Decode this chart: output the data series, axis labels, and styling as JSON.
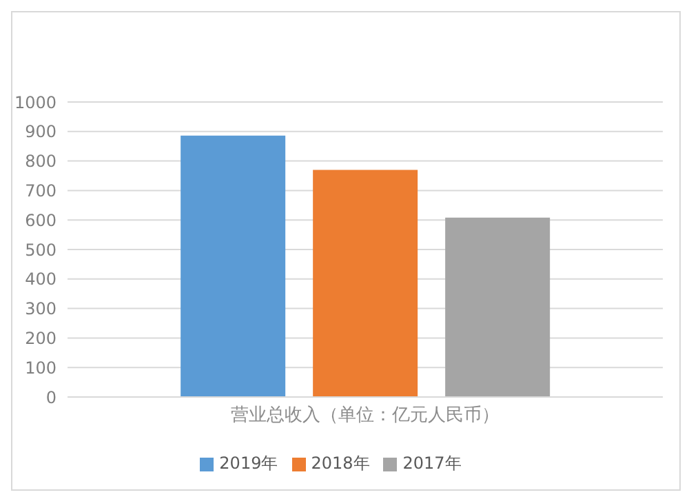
{
  "chart_data": {
    "type": "bar",
    "categories": [
      "营业总收入（单位：亿元人民币）"
    ],
    "series": [
      {
        "name": "2019年",
        "color": "#5b9bd5",
        "values": [
          886
        ]
      },
      {
        "name": "2018年",
        "color": "#ed7d31",
        "values": [
          770
        ]
      },
      {
        "name": "2017年",
        "color": "#a5a5a5",
        "values": [
          608
        ]
      }
    ],
    "ylim": [
      0,
      1000
    ],
    "yticks": [
      0,
      100,
      200,
      300,
      400,
      500,
      600,
      700,
      800,
      900,
      1000
    ],
    "grid": "y",
    "legend": "bottom"
  }
}
